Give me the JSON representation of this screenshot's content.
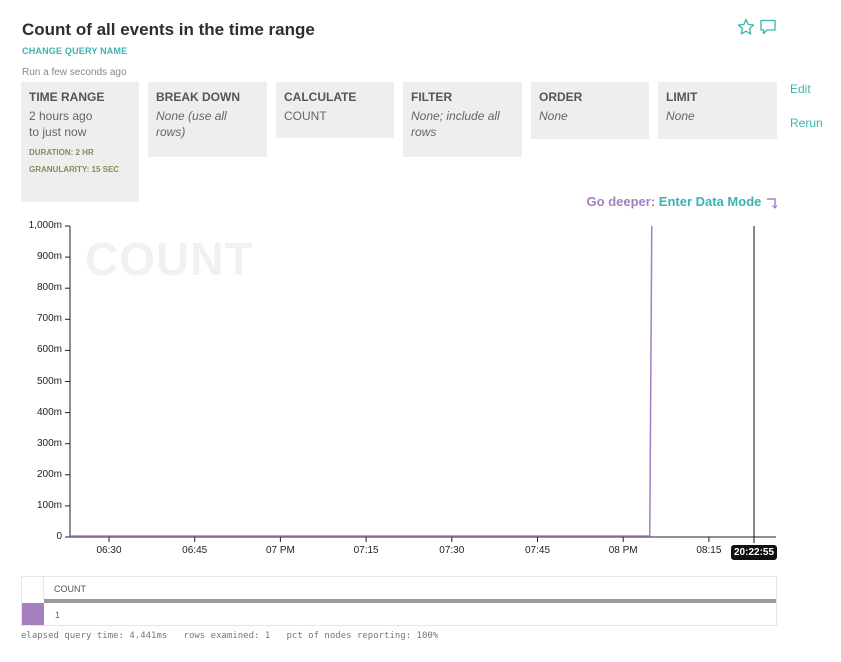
{
  "header": {
    "title": "Count of all events in the time range",
    "change_name": "CHANGE QUERY NAME",
    "run_time": "Run a few seconds ago",
    "icons": [
      "star-icon",
      "comment-icon"
    ]
  },
  "query": {
    "time_range": {
      "label": "TIME RANGE",
      "line1": "2 hours ago",
      "line2": "to just now",
      "duration": "DURATION: 2 HR",
      "granularity": "GRANULARITY: 15 SEC"
    },
    "break_down": {
      "label": "BREAK DOWN",
      "value": "None (use all rows)"
    },
    "calculate": {
      "label": "CALCULATE",
      "value": "COUNT"
    },
    "filter": {
      "label": "FILTER",
      "value": "None; include all rows"
    },
    "order": {
      "label": "ORDER",
      "value": "None"
    },
    "limit": {
      "label": "LIMIT",
      "value": "None"
    },
    "edit": "Edit",
    "rerun": "Rerun"
  },
  "go_deeper": {
    "label": "Go deeper:",
    "link": "Enter Data Mode",
    "icon": "corner-arrow-icon"
  },
  "chart_data": {
    "type": "line",
    "watermark": "COUNT",
    "y_ticks": [
      "0",
      "100m",
      "200m",
      "300m",
      "400m",
      "500m",
      "600m",
      "700m",
      "800m",
      "900m",
      "1,000m"
    ],
    "x_ticks": [
      "06:30",
      "06:45",
      "07 PM",
      "07:15",
      "07:30",
      "07:45",
      "08 PM",
      "08:15"
    ],
    "now_label": "20:22:55",
    "ylim": [
      0,
      1
    ],
    "series": [
      {
        "color": "#a67fbf",
        "spike_at": "08:05",
        "spike_value": 1
      }
    ]
  },
  "table": {
    "column": "COUNT",
    "rows": [
      {
        "color": "#a67fbf",
        "count": "1"
      }
    ]
  },
  "footer": "elapsed query time: 4.441ms   rows examined: 1   pct of nodes reporting: 100%"
}
